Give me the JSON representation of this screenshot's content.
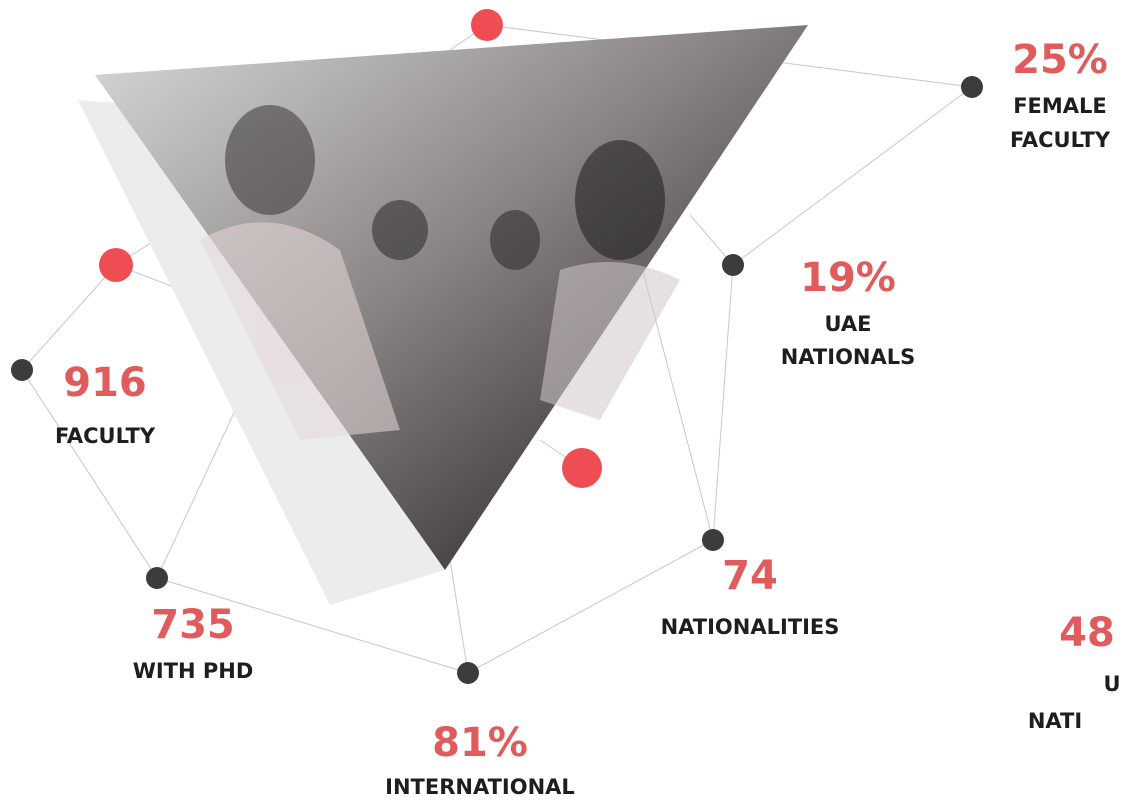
{
  "stats": [
    {
      "value": "25%",
      "label_lines": [
        "FEMALE",
        "FACULTY"
      ]
    },
    {
      "value": "19%",
      "label_lines": [
        "UAE",
        "NATIONALS"
      ]
    },
    {
      "value": "916",
      "label_lines": [
        "FACULTY"
      ]
    },
    {
      "value": "735",
      "label_lines": [
        "WITH PHD"
      ]
    },
    {
      "value": "74",
      "label_lines": [
        "NATIONALITIES"
      ]
    },
    {
      "value": "81%",
      "label_lines": [
        "INTERNATIONAL"
      ]
    },
    {
      "value": "48",
      "label_lines": [
        "U",
        "NATI"
      ]
    }
  ]
}
